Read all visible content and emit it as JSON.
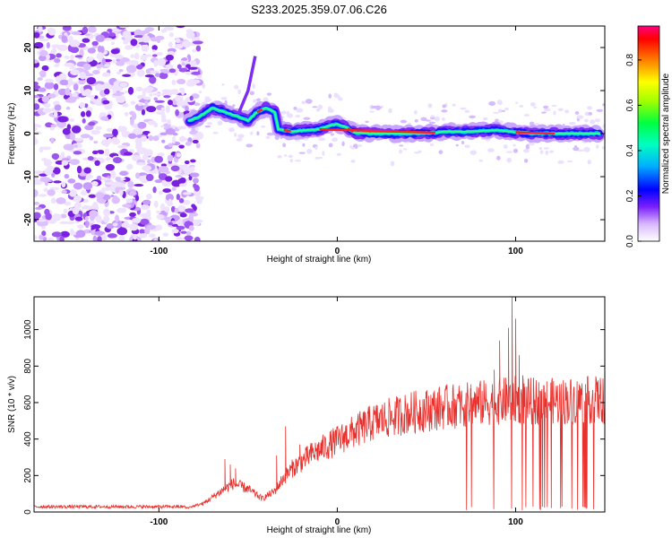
{
  "title": "S233.2025.359.07.06.C26",
  "chart_data": [
    {
      "type": "heatmap",
      "name": "spectrogram",
      "xlabel": "Height of straight line (km)",
      "ylabel": "Frequency (Hz)",
      "xlim": [
        -170,
        150
      ],
      "ylim": [
        -25,
        25
      ],
      "xticks": [
        -100,
        0,
        100
      ],
      "xtick_labels": [
        "-100",
        "0",
        "100"
      ],
      "yticks": [
        -20,
        -10,
        0,
        10,
        20
      ],
      "ytick_labels": [
        "-20",
        "-10",
        "0",
        "10",
        "20"
      ],
      "colorbar": {
        "label": "Normalized spectral amplitude",
        "range": [
          0,
          0.95
        ],
        "ticks": [
          0,
          0.2,
          0.4,
          0.6,
          0.8
        ],
        "tick_labels": [
          "0.0",
          "0.2",
          "0.4",
          "0.6",
          "0.8"
        ]
      },
      "ridge": {
        "x": [
          -83,
          -77,
          -70,
          -63,
          -56,
          -50,
          -45,
          -40,
          -35,
          -33,
          -25,
          -18,
          -10,
          -5,
          0,
          5,
          10,
          20,
          40,
          55,
          60,
          70,
          80,
          90,
          100,
          110,
          130,
          147
        ],
        "y": [
          3,
          4,
          6,
          5,
          4,
          3,
          5,
          6,
          5,
          1,
          0.5,
          0.8,
          1,
          1.8,
          2.2,
          1.5,
          0.2,
          0,
          0,
          0.2,
          0.5,
          0.4,
          0.6,
          0.8,
          0.3,
          0,
          0,
          0
        ]
      },
      "noise_region_x": [
        -170,
        -83
      ]
    },
    {
      "type": "line",
      "name": "snr",
      "xlabel": "Height of straight line (km)",
      "ylabel": "SNR (10 * v/v)",
      "xlim": [
        -170,
        150
      ],
      "ylim": [
        0,
        1180
      ],
      "xticks": [
        -100,
        0,
        100
      ],
      "xtick_labels": [
        "-100",
        "0",
        "100"
      ],
      "yticks": [
        0,
        200,
        400,
        600,
        800,
        1000
      ],
      "ytick_labels": [
        "0",
        "200",
        "400",
        "600",
        "800",
        "1000"
      ],
      "series": [
        {
          "name": "SNR",
          "color": "#e8302c",
          "envelope_x": [
            -170,
            -120,
            -85,
            -75,
            -65,
            -58,
            -50,
            -42,
            -35,
            -30,
            -25,
            -15,
            -5,
            5,
            20,
            40,
            60,
            70,
            80,
            90,
            100,
            105,
            120,
            135,
            150
          ],
          "envelope_y": [
            20,
            20,
            20,
            45,
            110,
            150,
            120,
            70,
            110,
            180,
            230,
            300,
            350,
            400,
            470,
            520,
            550,
            560,
            570,
            580,
            590,
            580,
            580,
            585,
            590
          ],
          "spikes": [
            {
              "x": -63,
              "y": 290
            },
            {
              "x": -60,
              "y": 260
            },
            {
              "x": -57,
              "y": 240
            },
            {
              "x": -34,
              "y": 310
            },
            {
              "x": -29,
              "y": 470
            },
            {
              "x": -21,
              "y": 370
            },
            {
              "x": 75,
              "y": 700
            },
            {
              "x": 88,
              "y": 780
            },
            {
              "x": 91,
              "y": 940
            },
            {
              "x": 96,
              "y": 1010
            },
            {
              "x": 98,
              "y": 1180
            },
            {
              "x": 100,
              "y": 1060
            },
            {
              "x": 102,
              "y": 860
            },
            {
              "x": 104,
              "y": 750
            }
          ],
          "dropout_x_range": [
            70,
            148
          ]
        }
      ]
    }
  ]
}
